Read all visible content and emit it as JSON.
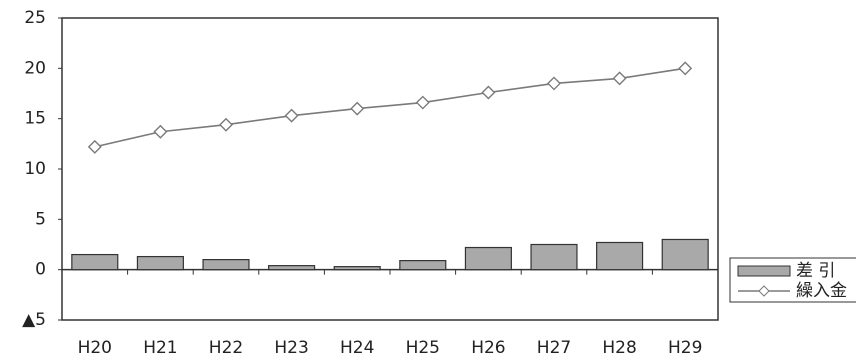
{
  "chart_data": {
    "type": "combo",
    "categories": [
      "H20",
      "H21",
      "H22",
      "H23",
      "H24",
      "H25",
      "H26",
      "H27",
      "H28",
      "H29"
    ],
    "series": [
      {
        "name": "差 引",
        "type": "bar",
        "color": "#a9a9a9",
        "values": [
          1.5,
          1.3,
          1.0,
          0.4,
          0.3,
          0.9,
          2.2,
          2.5,
          2.7,
          3.0
        ]
      },
      {
        "name": "繰入金",
        "type": "line",
        "color": "#7a7a7a",
        "values": [
          12.2,
          13.7,
          14.4,
          15.3,
          16.0,
          16.6,
          17.6,
          18.5,
          19.0,
          20.0
        ]
      }
    ],
    "ylim": [
      -5,
      25
    ],
    "yticks": [
      {
        "value": -5,
        "label": "▲5"
      },
      0,
      5,
      10,
      15,
      20,
      25
    ],
    "legend": "right",
    "grid": false
  }
}
